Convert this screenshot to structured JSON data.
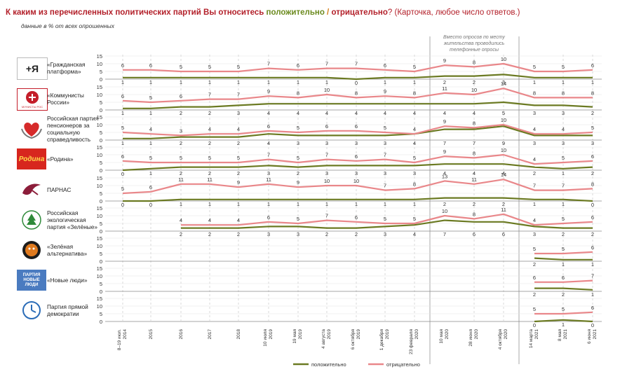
{
  "header": {
    "question": "К каким из перечисленных политических партий Вы относитесь ",
    "positive": "положительно",
    "slash": " / ",
    "negative": "отрицательно",
    "note": "? (Карточка, любое число ответов.)",
    "subtitle": "данные в % от всех опрошенных"
  },
  "colors": {
    "positive": "#6b7a22",
    "negative": "#e9878a",
    "grid": "#cfcfcf",
    "accent": "#b3202a"
  },
  "logos": [
    {
      "icon": "grazhdanskaya-platforma-logo",
      "text": "+Я"
    },
    {
      "icon": "kprf-logo",
      "text": "КОММУНИСТЫ РОССИИ"
    },
    {
      "icon": "heart-hands-logo",
      "text": ""
    },
    {
      "icon": "rodina-logo",
      "text": "Родина"
    },
    {
      "icon": "parnas-bird-logo",
      "text": ""
    },
    {
      "icon": "zelenye-logo",
      "text": ""
    },
    {
      "icon": "zelenaya-alternativa-logo",
      "text": ""
    },
    {
      "icon": "novye-lyudi-logo",
      "text": "ПАРТИЯ НОВЫЕ ЛЮДИ"
    },
    {
      "icon": "pryamaya-demokratiya-logo",
      "text": ""
    }
  ],
  "chart_data": {
    "type": "line",
    "x": [
      "8–19 июл. 2014",
      "2015",
      "2016",
      "2017",
      "2018",
      "10 июля 2019",
      "19 мая 2019",
      "4 августа 2019",
      "6 октября 2019",
      "1 декабря 2019",
      "23 февраля 2020",
      "10 мая 2020",
      "28 июня 2020",
      "4 октября 2020",
      "14 марта 2021",
      "8 мая 2021",
      "6 июня 2021"
    ],
    "ylim": [
      0,
      15
    ],
    "yticks": [
      "15",
      "10",
      "5",
      "0"
    ],
    "annotation": "Вместо опросов по месту жительства проводились телефонные опросы",
    "legend": [
      "положительно",
      "отрицательно"
    ],
    "parties": [
      {
        "name": "«Гражданская платформа»",
        "series": [
          {
            "name": "положительно",
            "values": [
              1,
              1,
              1,
              1,
              1,
              1,
              1,
              1,
              0,
              1,
              1,
              2,
              2,
              3,
              1,
              1,
              1
            ]
          },
          {
            "name": "отрицательно",
            "values": [
              6,
              6,
              5,
              5,
              5,
              7,
              6,
              7,
              7,
              6,
              5,
              9,
              8,
              10,
              5,
              5,
              6
            ]
          }
        ]
      },
      {
        "name": "«Коммунисты России»",
        "series": [
          {
            "name": "положительно",
            "values": [
              1,
              1,
              2,
              2,
              3,
              4,
              4,
              4,
              4,
              4,
              4,
              4,
              4,
              5,
              3,
              3,
              2
            ]
          },
          {
            "name": "отрицательно",
            "values": [
              6,
              5,
              6,
              7,
              7,
              9,
              8,
              10,
              8,
              9,
              8,
              11,
              10,
              14,
              8,
              8,
              8
            ]
          }
        ]
      },
      {
        "name": "Российская партия пенсионеров за социальную справедливость",
        "series": [
          {
            "name": "положительно",
            "values": [
              1,
              1,
              2,
              2,
              2,
              4,
              3,
              3,
              3,
              3,
              4,
              7,
              7,
              9,
              3,
              3,
              3
            ]
          },
          {
            "name": "отрицательно",
            "values": [
              5,
              4,
              3,
              4,
              4,
              6,
              5,
              6,
              6,
              5,
              4,
              9,
              8,
              10,
              4,
              4,
              5
            ]
          }
        ]
      },
      {
        "name": "«Родина»",
        "series": [
          {
            "name": "положительно",
            "values": [
              0,
              1,
              2,
              2,
              2,
              3,
              2,
              3,
              3,
              3,
              3,
              4,
              4,
              4,
              2,
              1,
              2
            ]
          },
          {
            "name": "отрицательно",
            "values": [
              6,
              5,
              5,
              5,
              5,
              7,
              5,
              7,
              6,
              7,
              5,
              9,
              8,
              10,
              4,
              5,
              6
            ]
          }
        ]
      },
      {
        "name": "ПАРНАС",
        "series": [
          {
            "name": "положительно",
            "values": [
              0,
              0,
              1,
              1,
              1,
              1,
              1,
              1,
              1,
              1,
              1,
              2,
              2,
              2,
              1,
              1,
              0
            ]
          },
          {
            "name": "отрицательно",
            "values": [
              5,
              6,
              11,
              11,
              9,
              11,
              9,
              10,
              10,
              7,
              8,
              13,
              11,
              14,
              7,
              7,
              8
            ]
          }
        ]
      },
      {
        "name": "Российская экологическая партия «Зелёные»",
        "series": [
          {
            "name": "положительно",
            "values": [
              null,
              null,
              2,
              2,
              2,
              3,
              3,
              2,
              2,
              3,
              4,
              7,
              6,
              6,
              3,
              2,
              2
            ]
          },
          {
            "name": "отрицательно",
            "values": [
              null,
              null,
              4,
              4,
              4,
              6,
              5,
              7,
              6,
              5,
              5,
              10,
              8,
              11,
              4,
              5,
              6
            ]
          }
        ]
      },
      {
        "name": "«Зелёная альтернатива»",
        "series": [
          {
            "name": "положительно",
            "values": [
              null,
              null,
              null,
              null,
              null,
              null,
              null,
              null,
              null,
              null,
              null,
              null,
              null,
              null,
              2,
              1,
              1
            ]
          },
          {
            "name": "отрицательно",
            "values": [
              null,
              null,
              null,
              null,
              null,
              null,
              null,
              null,
              null,
              null,
              null,
              null,
              null,
              null,
              5,
              5,
              6
            ]
          }
        ]
      },
      {
        "name": "«Новые люди»",
        "series": [
          {
            "name": "положительно",
            "values": [
              null,
              null,
              null,
              null,
              null,
              null,
              null,
              null,
              null,
              null,
              null,
              null,
              null,
              null,
              2,
              2,
              1
            ]
          },
          {
            "name": "отрицательно",
            "values": [
              null,
              null,
              null,
              null,
              null,
              null,
              null,
              null,
              null,
              null,
              null,
              null,
              null,
              null,
              6,
              6,
              7
            ]
          }
        ]
      },
      {
        "name": "Партия прямой демократии",
        "series": [
          {
            "name": "положительно",
            "values": [
              null,
              null,
              null,
              null,
              null,
              null,
              null,
              null,
              null,
              null,
              null,
              null,
              null,
              null,
              0,
              1,
              0
            ]
          },
          {
            "name": "отрицательно",
            "values": [
              null,
              null,
              null,
              null,
              null,
              null,
              null,
              null,
              null,
              null,
              null,
              null,
              null,
              null,
              5,
              5,
              6
            ]
          }
        ]
      }
    ]
  }
}
